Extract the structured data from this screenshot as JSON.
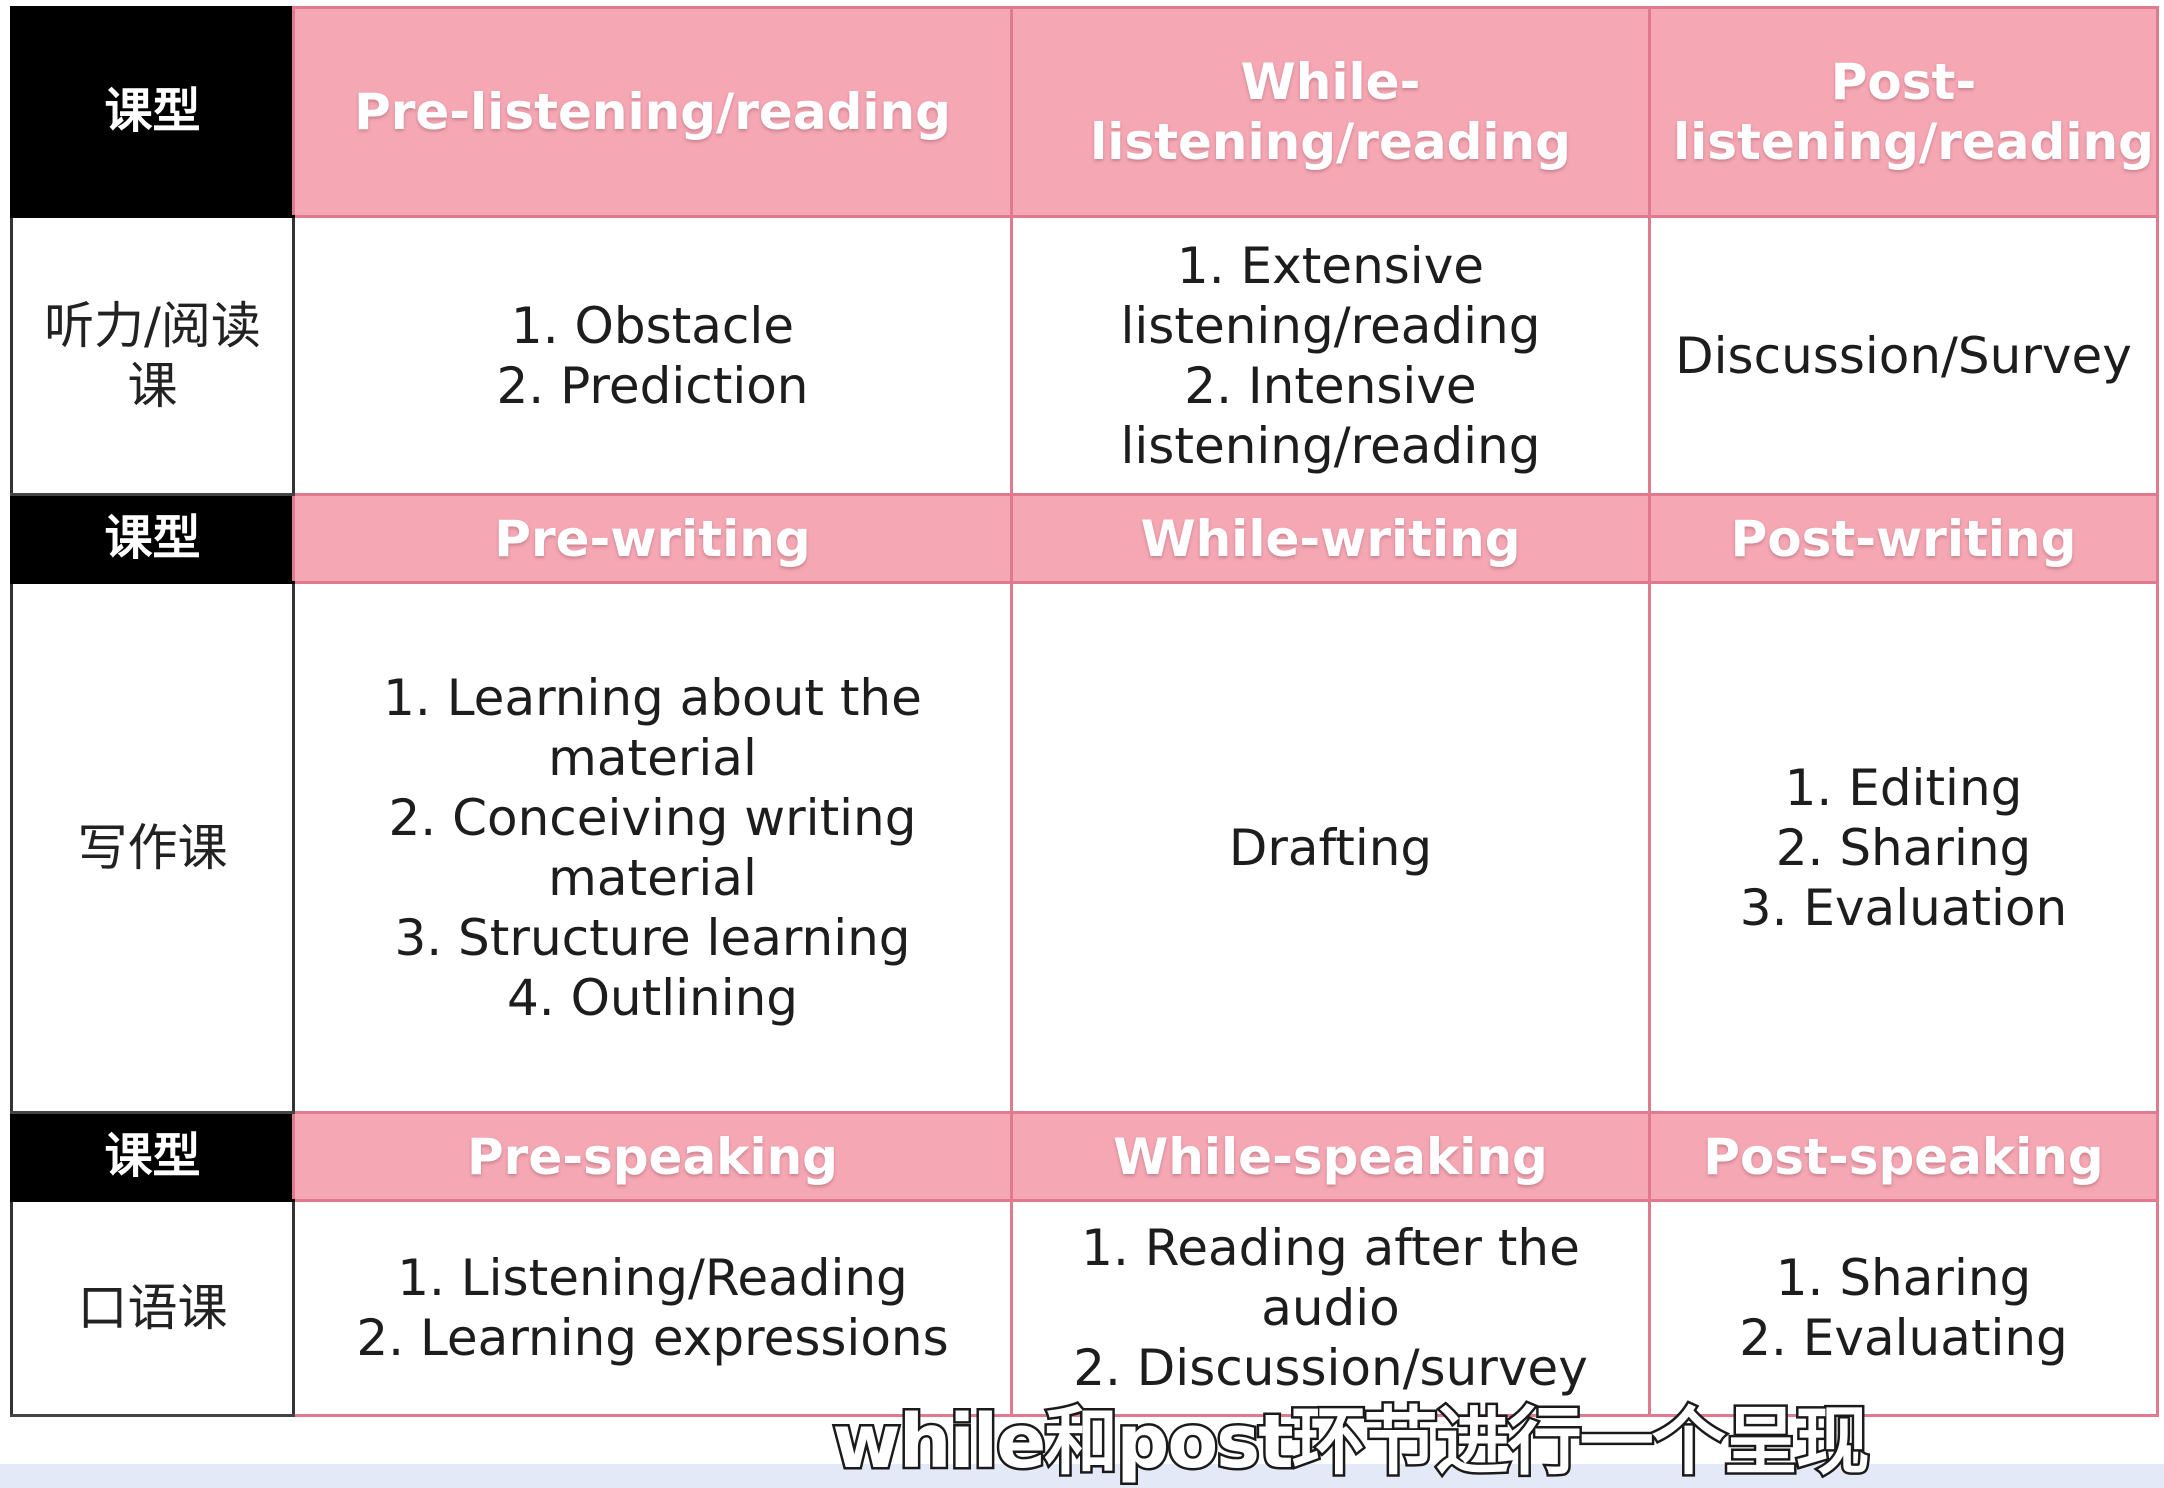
{
  "table": {
    "sections": [
      {
        "type_label": "课型",
        "phases": [
          "Pre-listening/reading",
          "While-listening/reading",
          "Post-\nlistening/reading"
        ],
        "row_label": "听力/阅读\n课",
        "cells": [
          [
            "1. Obstacle",
            "2. Prediction"
          ],
          [
            "1. Extensive",
            "listening/reading",
            "2. Intensive",
            "listening/reading"
          ],
          [
            "Discussion/Survey"
          ]
        ]
      },
      {
        "type_label": "课型",
        "phases": [
          "Pre-writing",
          "While-writing",
          "Post-writing"
        ],
        "row_label": "写作课",
        "cells": [
          [
            "1. Learning about the",
            "material",
            "2. Conceiving writing",
            "material",
            "3. Structure learning",
            "4. Outlining"
          ],
          [
            "Drafting"
          ],
          [
            "1. Editing",
            "2. Sharing",
            "3. Evaluation"
          ]
        ]
      },
      {
        "type_label": "课型",
        "phases": [
          "Pre-speaking",
          "While-speaking",
          "Post-speaking"
        ],
        "row_label": "口语课",
        "cells": [
          [
            "1. Listening/Reading",
            "2. Learning expressions"
          ],
          [
            "1. Reading after the",
            "audio",
            "2. Discussion/survey"
          ],
          [
            "1. Sharing",
            "2. Evaluating"
          ]
        ]
      }
    ]
  },
  "subtitle": "while和post环节进行一个呈现",
  "colors": {
    "type_header_bg": "#000000",
    "phase_header_bg": "#f5a7b4",
    "border": "#e07a8e"
  }
}
